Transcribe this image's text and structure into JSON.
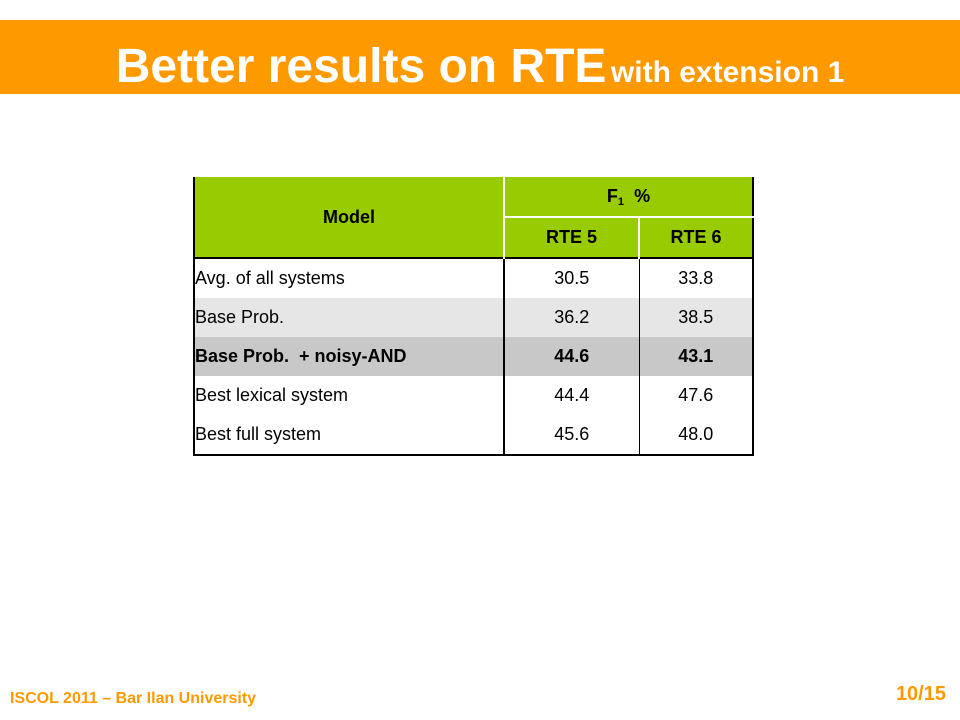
{
  "slide": {
    "title_main": "Better results on RTE",
    "title_sub": "with extension 1"
  },
  "table": {
    "header_model": "Model",
    "header_metric_base": "F",
    "header_metric_sub": "1",
    "header_metric_unit": "%",
    "col1": "RTE 5",
    "col2": "RTE 6",
    "rows": [
      {
        "label": "Avg. of all systems",
        "v1": "30.5",
        "v2": "33.8"
      },
      {
        "label": "Base Prob.",
        "v1": "36.2",
        "v2": "38.5"
      },
      {
        "label": "Base Prob.  + noisy-AND",
        "v1": "44.6",
        "v2": "43.1"
      },
      {
        "label": "Best lexical system",
        "v1": "44.4",
        "v2": "47.6"
      },
      {
        "label": "Best full system",
        "v1": "45.6",
        "v2": "48.0"
      }
    ]
  },
  "footer": {
    "left": "ISCOL 2011 – Bar Ilan University",
    "page": "10/15"
  },
  "colors": {
    "accent": "#ff9900",
    "table_header": "#99cc00",
    "highlight_row": "#c8c8c8",
    "alt_row": "#e6e6e6"
  }
}
